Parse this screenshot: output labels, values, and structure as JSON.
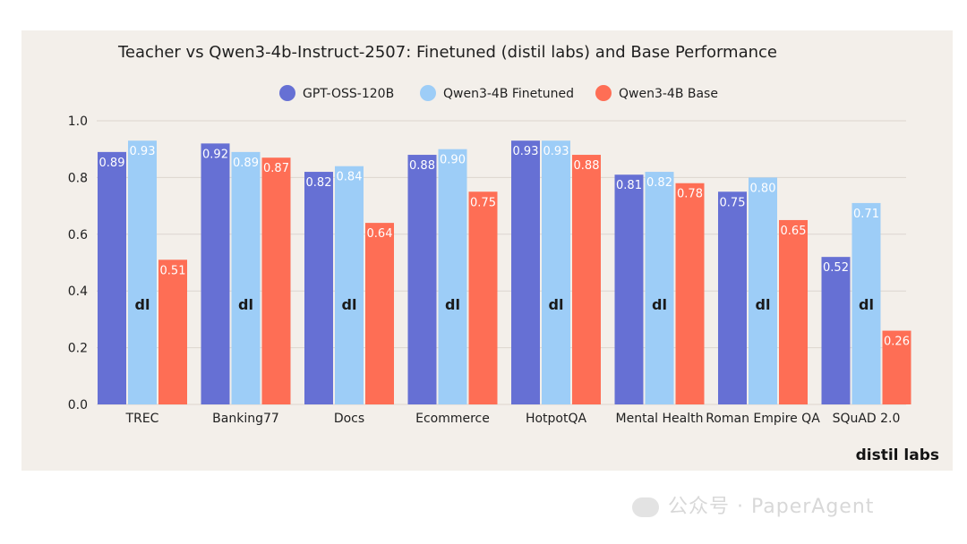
{
  "chart_data": {
    "type": "bar",
    "title": "Teacher vs Qwen3-4b-Instruct-2507: Finetuned (distil labs) and Base Performance",
    "categories": [
      "TREC",
      "Banking77",
      "Docs",
      "Ecommerce",
      "HotpotQA",
      "Mental Health",
      "Roman Empire QA",
      "SQuAD 2.0"
    ],
    "series": [
      {
        "name": "GPT-OSS-120B",
        "color": "#6670d4",
        "values": [
          0.89,
          0.92,
          0.82,
          0.88,
          0.93,
          0.81,
          0.75,
          0.52
        ]
      },
      {
        "name": "Qwen3-4B Finetuned",
        "color": "#9dcdf7",
        "values": [
          0.93,
          0.89,
          0.84,
          0.9,
          0.93,
          0.82,
          0.8,
          0.71
        ]
      },
      {
        "name": "Qwen3-4B Base",
        "color": "#fe6e55",
        "values": [
          0.51,
          0.87,
          0.64,
          0.75,
          0.88,
          0.78,
          0.65,
          0.26
        ]
      }
    ],
    "value_labels": [
      [
        "0.89",
        "0.92",
        "0.82",
        "0.88",
        "0.93",
        "0.81",
        "0.75",
        "0.52"
      ],
      [
        "0.93",
        "0.89",
        "0.84",
        "0.90",
        "0.93",
        "0.82",
        "0.80",
        "0.71"
      ],
      [
        "0.51",
        "0.87",
        "0.64",
        "0.75",
        "0.88",
        "0.78",
        "0.65",
        "0.26"
      ]
    ],
    "bar_mark": "dl",
    "xlabel": "",
    "ylabel": "",
    "ylim": [
      0,
      1.0
    ],
    "yticks": [
      "0.0",
      "0.2",
      "0.4",
      "0.6",
      "0.8",
      "1.0"
    ],
    "grid": true,
    "legend": "top-center"
  },
  "brand": "distil labs",
  "watermark": {
    "text": "公众号 · PaperAgent",
    "icon": "wechat-icon"
  }
}
